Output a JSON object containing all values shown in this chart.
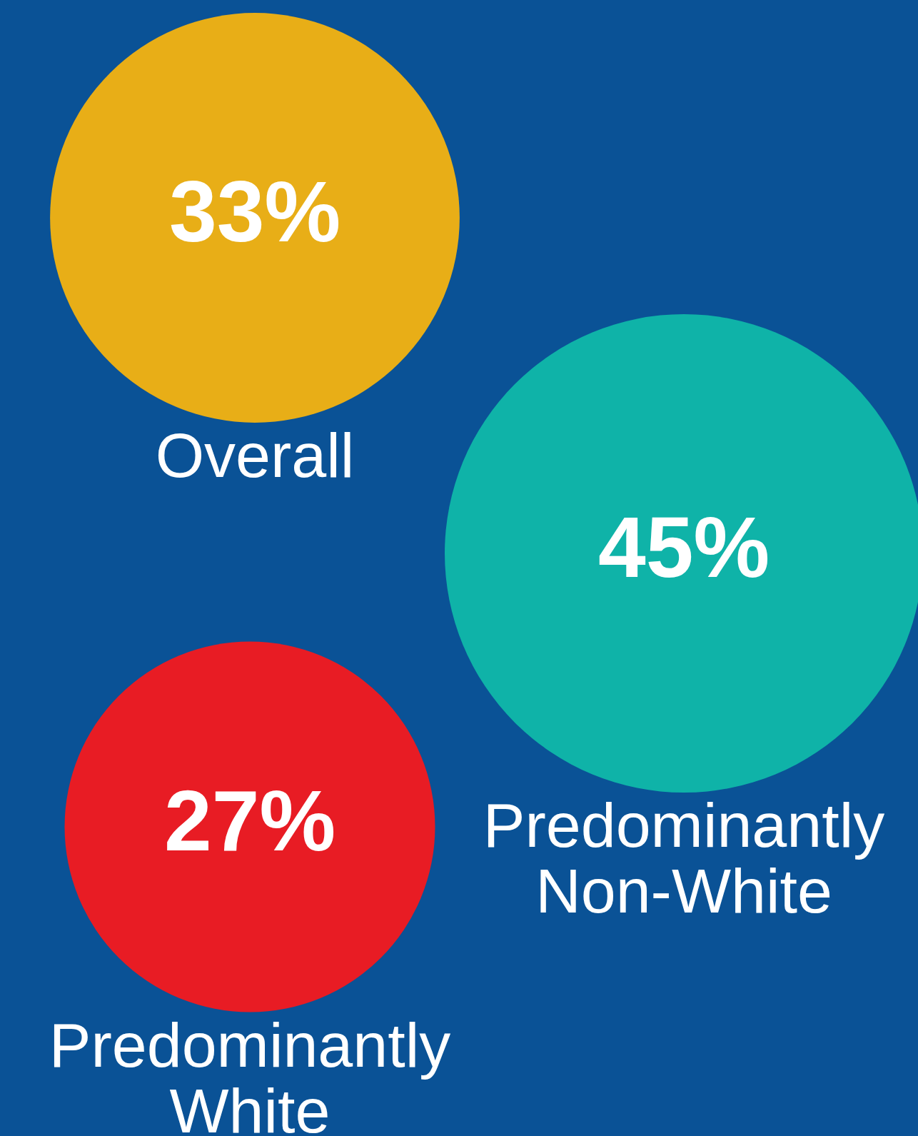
{
  "chart_data": {
    "type": "other",
    "categories": [
      "Overall",
      "Predominantly Non-White",
      "Predominantly White"
    ],
    "values": [
      33,
      45,
      27
    ],
    "value_labels": [
      "33%",
      "45%",
      "27%"
    ],
    "colors": [
      "#e8ae17",
      "#0fb3a8",
      "#e81c24"
    ]
  }
}
